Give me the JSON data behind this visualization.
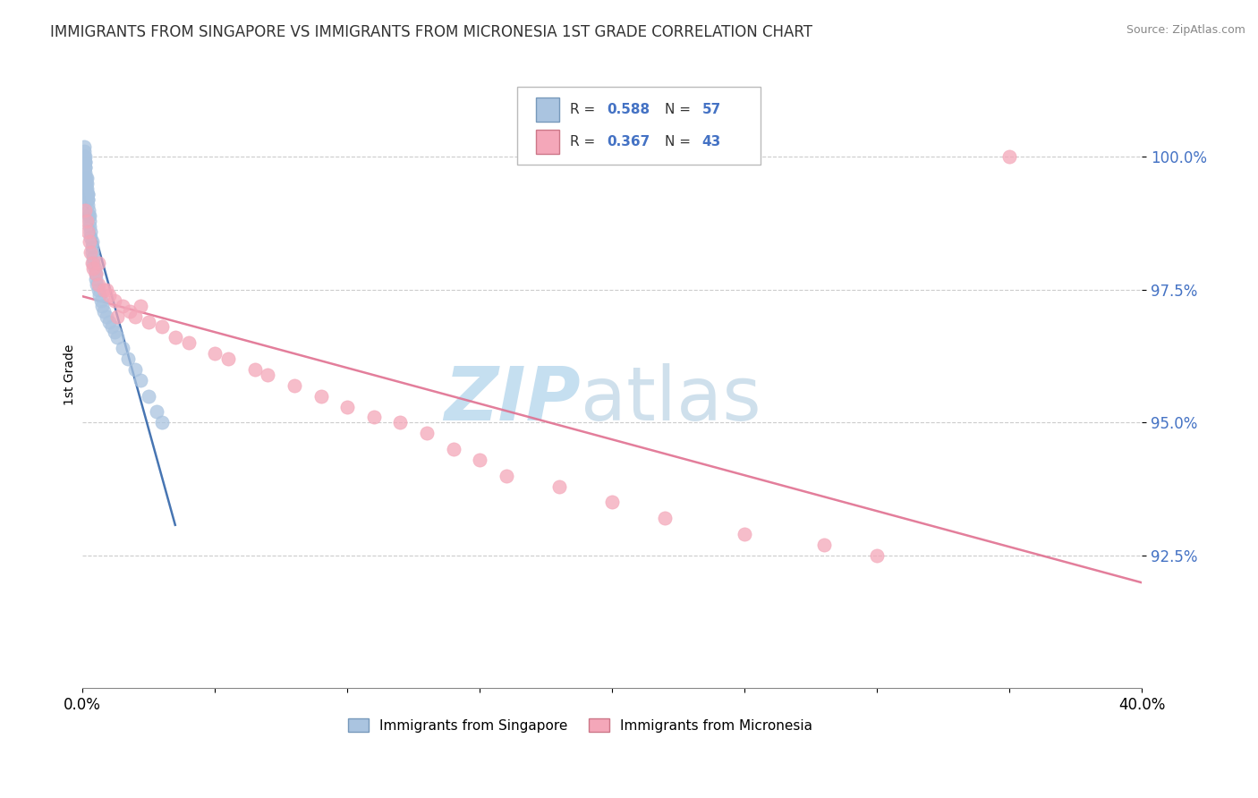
{
  "title": "IMMIGRANTS FROM SINGAPORE VS IMMIGRANTS FROM MICRONESIA 1ST GRADE CORRELATION CHART",
  "source_text": "Source: ZipAtlas.com",
  "ylabel": "1st Grade",
  "y_tick_labels": [
    "92.5%",
    "95.0%",
    "97.5%",
    "100.0%"
  ],
  "y_tick_values": [
    92.5,
    95.0,
    97.5,
    100.0
  ],
  "ylim": [
    90.0,
    101.8
  ],
  "xlim": [
    0.0,
    40.0
  ],
  "legend_labels": [
    "Immigrants from Singapore",
    "Immigrants from Micronesia"
  ],
  "r_singapore": "0.588",
  "n_singapore": "57",
  "r_micronesia": "0.367",
  "n_micronesia": "43",
  "color_singapore": "#aac4e0",
  "color_micronesia": "#f4a7b9",
  "color_singapore_line": "#3366aa",
  "color_micronesia_line": "#e07090",
  "watermark_zip_color": "#c5dff0",
  "watermark_atlas_color": "#b0cce0",
  "singapore_x": [
    0.05,
    0.05,
    0.05,
    0.05,
    0.08,
    0.08,
    0.08,
    0.1,
    0.1,
    0.1,
    0.1,
    0.1,
    0.12,
    0.12,
    0.12,
    0.15,
    0.15,
    0.15,
    0.15,
    0.18,
    0.18,
    0.2,
    0.2,
    0.2,
    0.22,
    0.22,
    0.25,
    0.25,
    0.28,
    0.3,
    0.3,
    0.35,
    0.35,
    0.38,
    0.4,
    0.4,
    0.45,
    0.5,
    0.5,
    0.55,
    0.6,
    0.65,
    0.7,
    0.75,
    0.8,
    0.9,
    1.0,
    1.1,
    1.2,
    1.3,
    1.5,
    1.7,
    2.0,
    2.2,
    2.5,
    2.8,
    3.0
  ],
  "singapore_y": [
    99.9,
    100.0,
    100.1,
    100.2,
    99.8,
    99.9,
    100.0,
    99.5,
    99.6,
    99.7,
    99.8,
    99.9,
    99.4,
    99.5,
    99.6,
    99.3,
    99.4,
    99.5,
    99.6,
    99.2,
    99.3,
    99.1,
    99.2,
    99.3,
    98.9,
    99.0,
    98.8,
    98.9,
    98.7,
    98.5,
    98.6,
    98.3,
    98.4,
    98.2,
    98.0,
    98.1,
    97.9,
    97.7,
    97.8,
    97.6,
    97.5,
    97.4,
    97.3,
    97.2,
    97.1,
    97.0,
    96.9,
    96.8,
    96.7,
    96.6,
    96.4,
    96.2,
    96.0,
    95.8,
    95.5,
    95.2,
    95.0
  ],
  "micronesia_x": [
    0.1,
    0.15,
    0.2,
    0.25,
    0.3,
    0.35,
    0.4,
    0.5,
    0.6,
    0.8,
    1.0,
    1.2,
    1.5,
    1.8,
    2.0,
    2.5,
    3.0,
    3.5,
    4.0,
    5.0,
    5.5,
    6.5,
    7.0,
    8.0,
    9.0,
    10.0,
    11.0,
    12.0,
    13.0,
    14.0,
    15.0,
    16.0,
    18.0,
    20.0,
    22.0,
    25.0,
    28.0,
    30.0,
    35.0,
    0.6,
    0.9,
    1.3,
    2.2
  ],
  "micronesia_y": [
    99.0,
    98.8,
    98.6,
    98.4,
    98.2,
    98.0,
    97.9,
    97.8,
    97.6,
    97.5,
    97.4,
    97.3,
    97.2,
    97.1,
    97.0,
    96.9,
    96.8,
    96.6,
    96.5,
    96.3,
    96.2,
    96.0,
    95.9,
    95.7,
    95.5,
    95.3,
    95.1,
    95.0,
    94.8,
    94.5,
    94.3,
    94.0,
    93.8,
    93.5,
    93.2,
    92.9,
    92.7,
    92.5,
    100.0,
    98.0,
    97.5,
    97.0,
    97.2
  ]
}
